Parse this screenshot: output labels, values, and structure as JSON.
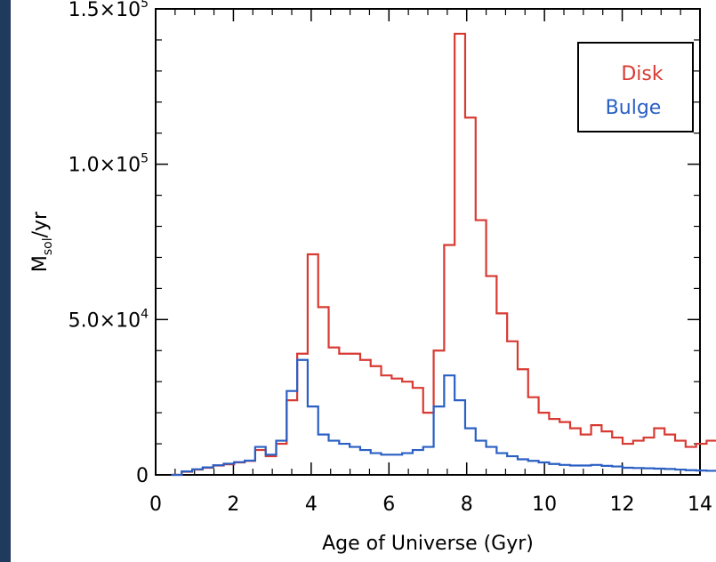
{
  "chart_data": {
    "type": "line",
    "style": "step",
    "title": "",
    "xlabel": "Age of Universe (Gyr)",
    "ylabel": {
      "base": "M",
      "subscript": "sol",
      "rest": "/yr"
    },
    "xlim": [
      0,
      14
    ],
    "ylim": [
      0,
      150000
    ],
    "x_ticks": [
      0,
      2,
      4,
      6,
      8,
      10,
      12,
      14
    ],
    "x_tick_labels": [
      "0",
      "2",
      "4",
      "6",
      "8",
      "10",
      "12",
      "14"
    ],
    "y_ticks": [
      0,
      50000,
      100000,
      150000
    ],
    "y_tick_labels": [
      {
        "mantissa": "0",
        "exp": ""
      },
      {
        "mantissa": "5.0×10",
        "exp": "4"
      },
      {
        "mantissa": "1.0×10",
        "exp": "5"
      },
      {
        "mantissa": "1.5×10",
        "exp": "5"
      }
    ],
    "legend_position": "top-right",
    "bin_width": 0.27,
    "x_start": 0.4,
    "series": [
      {
        "name": "Disk",
        "color": "#d83a32",
        "values": [
          0,
          1000,
          1700,
          2300,
          3000,
          3400,
          4000,
          4500,
          8000,
          6000,
          10000,
          24000,
          39000,
          71000,
          54000,
          41000,
          39000,
          39000,
          37000,
          35000,
          32000,
          31000,
          30000,
          28000,
          20000,
          40000,
          74000,
          142000,
          115000,
          82000,
          64000,
          52000,
          43000,
          34000,
          25000,
          20000,
          18000,
          17000,
          15000,
          13000,
          16000,
          14000,
          12000,
          10000,
          11000,
          12000,
          15000,
          13000,
          11000,
          9000,
          10000,
          11000,
          13000,
          10000,
          0
        ]
      },
      {
        "name": "Bulge",
        "color": "#2a5fc4",
        "values": [
          0,
          1100,
          1800,
          2400,
          3100,
          3600,
          4100,
          4600,
          9000,
          6500,
          11000,
          27000,
          37000,
          22000,
          13000,
          11000,
          10000,
          9000,
          8000,
          7000,
          6500,
          6500,
          7000,
          8000,
          9000,
          22000,
          32000,
          24000,
          15000,
          11000,
          9000,
          7000,
          6000,
          5000,
          4500,
          4000,
          3500,
          3200,
          3000,
          3000,
          3200,
          2900,
          2700,
          2300,
          2200,
          2100,
          2000,
          1900,
          1700,
          1500,
          1400,
          1300,
          1200,
          1000,
          0
        ]
      }
    ]
  }
}
